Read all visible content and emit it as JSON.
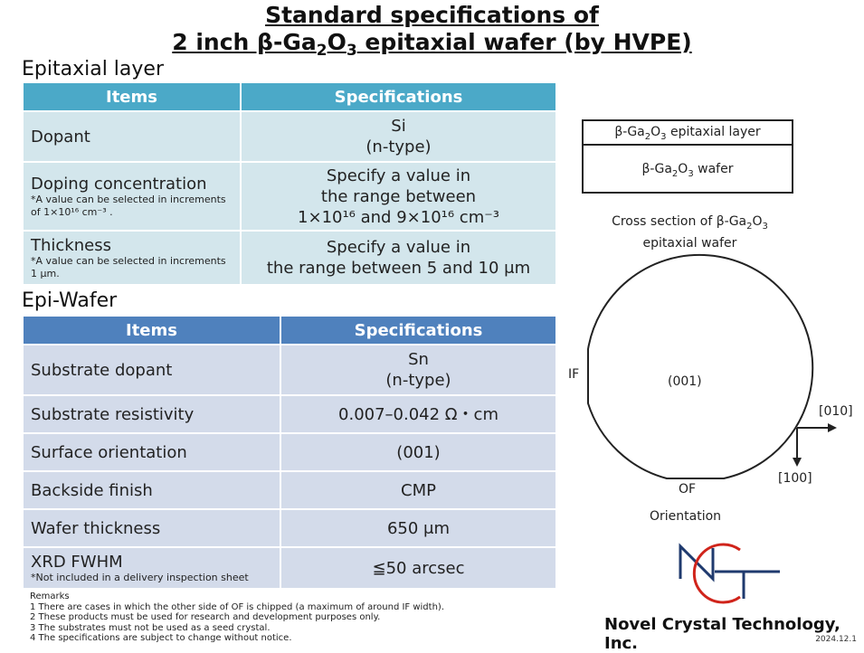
{
  "title": {
    "line1": "Standard specifications of",
    "line2_prefix": "2 inch β-Ga",
    "line2_sub1": "2",
    "line2_mid": "O",
    "line2_sub2": "3",
    "line2_suffix": " epitaxial wafer (by HVPE)"
  },
  "epi_layer": {
    "heading": "Epitaxial layer",
    "col_items": "Items",
    "col_specs": "Specifications",
    "rows": [
      {
        "item": "Dopant",
        "note": "",
        "spec1": "Si",
        "spec2": "(n-type)",
        "spec3": ""
      },
      {
        "item": "Doping concentration",
        "note": "*A value can be selected in increments of 1×10¹⁶ cm⁻³ .",
        "spec1": "Specify a value in",
        "spec2": "the range between",
        "spec3": "1×10¹⁶ and 9×10¹⁶ cm⁻³"
      },
      {
        "item": "Thickness",
        "note": "*A value can be selected in increments 1 μm.",
        "spec1": "Specify a value in",
        "spec2": "the range between 5 and 10 μm",
        "spec3": ""
      }
    ]
  },
  "epi_wafer": {
    "heading": "Epi-Wafer",
    "col_items": "Items",
    "col_specs": "Specifications",
    "rows": [
      {
        "item": "Substrate dopant",
        "note": "",
        "spec1": "Sn",
        "spec2": "(n-type)"
      },
      {
        "item": "Substrate resistivity",
        "note": "",
        "spec1": "0.007–0.042 Ω・cm",
        "spec2": ""
      },
      {
        "item": "Surface orientation",
        "note": "",
        "spec1": "(001)",
        "spec2": ""
      },
      {
        "item": "Backside finish",
        "note": "",
        "spec1": "CMP",
        "spec2": ""
      },
      {
        "item": "Wafer thickness",
        "note": "",
        "spec1": "650 μm",
        "spec2": ""
      },
      {
        "item": "XRD FWHM",
        "note": "*Not included in a delivery inspection sheet",
        "spec1": "≦50 arcsec",
        "spec2": ""
      }
    ]
  },
  "remarks": {
    "title": "Remarks",
    "lines": [
      "1 There are cases in which the other side of OF is chipped (a maximum of around IF width).",
      "2 These products must be used for research and development purposes only.",
      "3 The substrates must not be used as a seed crystal.",
      "4 The specifications are subject to change without notice."
    ]
  },
  "cross_section": {
    "layer_prefix": "β-Ga",
    "sub1": "2",
    "mid": "O",
    "sub2": "3",
    "layer_suffix": " epitaxial layer",
    "wafer_suffix": " wafer",
    "caption1_prefix": "Cross section of β-Ga",
    "caption2": "epitaxial wafer"
  },
  "orientation": {
    "center": "(001)",
    "if_label": "IF",
    "of_label": "OF",
    "dir1": "[010]",
    "dir2": "[100]",
    "caption": "Orientation"
  },
  "logo": {
    "company": "Novel Crystal Technology, Inc.",
    "colors": {
      "blue": "#1f3a6e",
      "red": "#d0241b"
    }
  },
  "date": "2024.12.1",
  "colors": {
    "epi_header": "#4ba9c8",
    "epi_cell": "#d3e6ec",
    "wafer_header": "#4f81bd",
    "wafer_cell": "#d3dbea"
  }
}
